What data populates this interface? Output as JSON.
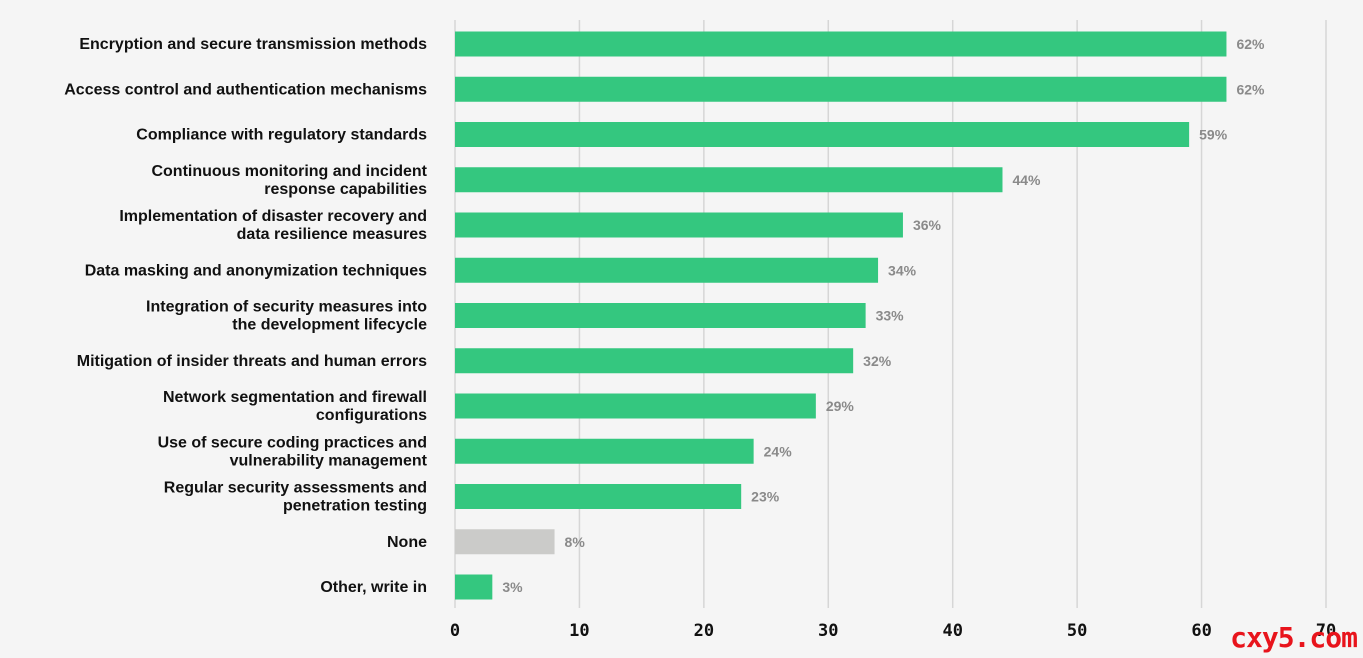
{
  "chart_data": {
    "type": "bar",
    "orientation": "horizontal",
    "categories": [
      "Encryption and secure transmission methods",
      "Access control and authentication mechanisms",
      "Compliance with regulatory standards",
      "Continuous monitoring and incident response capabilities",
      "Implementation of disaster recovery and data resilience measures",
      "Data masking and anonymization techniques",
      "Integration of security measures into the development lifecycle",
      "Mitigation of insider threats and human errors",
      "Network segmentation and firewall configurations",
      "Use of secure coding practices and vulnerability management",
      "Regular security assessments and penetration testing",
      "None",
      "Other, write in"
    ],
    "label_lines": [
      [
        "Encryption and secure transmission methods"
      ],
      [
        "Access control and authentication mechanisms"
      ],
      [
        "Compliance with regulatory standards"
      ],
      [
        "Continuous monitoring and incident",
        "response capabilities"
      ],
      [
        "Implementation of disaster recovery and",
        "data resilience measures"
      ],
      [
        "Data masking and anonymization techniques"
      ],
      [
        "Integration of security measures into",
        "the development lifecycle"
      ],
      [
        "Mitigation of insider threats and human errors"
      ],
      [
        "Network segmentation and firewall",
        "configurations"
      ],
      [
        "Use of secure coding practices and",
        "vulnerability management"
      ],
      [
        "Regular security assessments and",
        "penetration testing"
      ],
      [
        "None"
      ],
      [
        "Other, write in"
      ]
    ],
    "values": [
      62,
      62,
      59,
      44,
      36,
      34,
      33,
      32,
      29,
      24,
      23,
      8,
      3
    ],
    "value_labels": [
      "62%",
      "62%",
      "59%",
      "44%",
      "36%",
      "34%",
      "33%",
      "32%",
      "29%",
      "24%",
      "23%",
      "8%",
      "3%"
    ],
    "bar_colors": [
      "#34c77f",
      "#34c77f",
      "#34c77f",
      "#34c77f",
      "#34c77f",
      "#34c77f",
      "#34c77f",
      "#34c77f",
      "#34c77f",
      "#34c77f",
      "#34c77f",
      "#cbcbc9",
      "#34c77f"
    ],
    "xlim": [
      0,
      70
    ],
    "xticks": [
      0,
      10,
      20,
      30,
      40,
      50,
      60,
      70
    ],
    "grid": "vertical",
    "title": "",
    "xlabel": "",
    "ylabel": ""
  },
  "watermark": "cxy5.com"
}
